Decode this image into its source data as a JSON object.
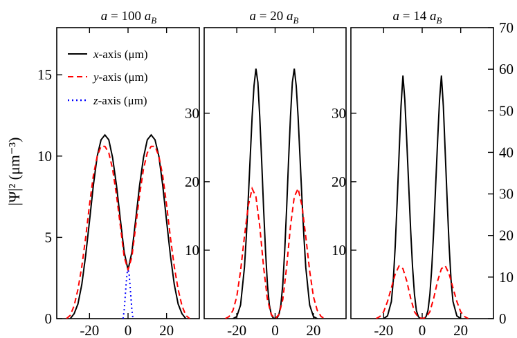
{
  "chart_data": [
    {
      "type": "line",
      "title_prefix": "a = ",
      "title_value": "100",
      "title_unit": "a",
      "title_subscript": "B",
      "ylabel": "|Ψ|² (μm⁻³)",
      "xlim": [
        -37,
        37
      ],
      "ylim": [
        0,
        17.9
      ],
      "xticks": [
        -20,
        0,
        20
      ],
      "yticks": [
        0,
        5,
        10,
        15
      ],
      "yticks_side": "left",
      "legend": {
        "placement": "top-left",
        "entries": [
          {
            "axis_letter": "x",
            "suffix": "-axis (μm)",
            "style": "solid",
            "color": "#000000"
          },
          {
            "axis_letter": "y",
            "suffix": "-axis (μm)",
            "style": "dashed",
            "color": "#ff0000"
          },
          {
            "axis_letter": "z",
            "suffix": "-axis (μm)",
            "style": "dotted",
            "color": "#0000ff"
          }
        ]
      },
      "series": [
        {
          "name": "x-axis (μm)",
          "color": "#000000",
          "style": "solid",
          "x": [
            -30,
            -28,
            -26,
            -24,
            -22,
            -20,
            -18,
            -16,
            -14,
            -12,
            -10,
            -8,
            -6,
            -4,
            -2,
            0,
            2,
            4,
            6,
            8,
            10,
            12,
            14,
            16,
            18,
            20,
            22,
            24,
            26,
            28,
            30
          ],
          "y": [
            0.0,
            0.3,
            0.9,
            2.1,
            3.9,
            6.0,
            8.2,
            10.0,
            11.0,
            11.3,
            11.0,
            9.9,
            8.2,
            6.1,
            4.1,
            3.0,
            4.1,
            6.1,
            8.2,
            9.9,
            11.0,
            11.3,
            11.0,
            10.0,
            8.2,
            6.0,
            3.9,
            2.1,
            0.9,
            0.3,
            0.0
          ]
        },
        {
          "name": "y-axis (μm)",
          "color": "#ff0000",
          "style": "dashed",
          "x": [
            -32,
            -30,
            -28,
            -26,
            -24,
            -22,
            -20,
            -18,
            -16,
            -14,
            -12,
            -10,
            -8,
            -6,
            -4,
            -2,
            0,
            2,
            4,
            6,
            8,
            10,
            12,
            14,
            16,
            18,
            20,
            22,
            24,
            26,
            28,
            30,
            32
          ],
          "y": [
            0.0,
            0.2,
            0.8,
            1.8,
            3.2,
            5.0,
            7.0,
            8.8,
            10.0,
            10.6,
            10.6,
            10.2,
            9.2,
            7.6,
            5.7,
            3.8,
            3.0,
            3.8,
            5.7,
            7.6,
            9.2,
            10.2,
            10.6,
            10.6,
            10.0,
            8.8,
            7.0,
            5.0,
            3.2,
            1.8,
            0.8,
            0.2,
            0.0
          ]
        },
        {
          "name": "z-axis (μm)",
          "color": "#0000ff",
          "style": "dotted",
          "x": [
            -2.6,
            -2.0,
            -1.5,
            -1.0,
            -0.5,
            0,
            0.5,
            1.0,
            1.5,
            2.0,
            2.6
          ],
          "y": [
            0.0,
            0.5,
            1.3,
            2.1,
            2.8,
            3.0,
            2.8,
            2.1,
            1.3,
            0.5,
            0.0
          ]
        }
      ]
    },
    {
      "type": "line",
      "title_prefix": "a = ",
      "title_value": "20",
      "title_unit": "a",
      "title_subscript": "B",
      "xlim": [
        -37,
        37
      ],
      "ylim": [
        0,
        42.5
      ],
      "xticks": [
        -20,
        0,
        20
      ],
      "yticks": [
        10,
        20,
        30
      ],
      "yticks_side": "left",
      "series": [
        {
          "name": "x-axis (μm)",
          "color": "#000000",
          "style": "solid",
          "x": [
            -22,
            -20,
            -18,
            -16,
            -15,
            -14,
            -13,
            -12,
            -11,
            -10,
            -9,
            -8,
            -7,
            -6,
            -5,
            -4,
            -3,
            -2,
            -1,
            0,
            1,
            2,
            3,
            4,
            5,
            6,
            7,
            8,
            9,
            10,
            11,
            12,
            13,
            14,
            15,
            16,
            18,
            20,
            22
          ],
          "y": [
            0.0,
            0.3,
            2.0,
            7.5,
            12.0,
            17.5,
            23.5,
            29.5,
            34.0,
            36.5,
            34.5,
            29.5,
            23.0,
            16.0,
            10.0,
            5.0,
            2.0,
            0.6,
            0.1,
            0.0,
            0.1,
            0.6,
            2.0,
            5.0,
            10.0,
            16.0,
            23.0,
            29.5,
            34.5,
            36.5,
            34.0,
            29.5,
            23.5,
            17.5,
            12.0,
            7.5,
            2.0,
            0.3,
            0.0
          ]
        },
        {
          "name": "y-axis (μm)",
          "color": "#ff0000",
          "style": "dashed",
          "x": [
            -26,
            -24,
            -22,
            -20,
            -18,
            -16,
            -14,
            -12,
            -10,
            -8,
            -6,
            -4,
            -2,
            0,
            2,
            4,
            6,
            8,
            10,
            12,
            14,
            16,
            18,
            20,
            22,
            24,
            26
          ],
          "y": [
            0.0,
            0.3,
            1.2,
            3.2,
            7.0,
            12.0,
            16.5,
            19.0,
            17.8,
            13.5,
            7.5,
            2.8,
            0.6,
            0.0,
            0.6,
            2.8,
            7.5,
            13.5,
            17.8,
            19.0,
            16.5,
            12.0,
            7.0,
            3.2,
            1.2,
            0.3,
            0.0
          ]
        }
      ]
    },
    {
      "type": "line",
      "title_prefix": "a = ",
      "title_value": "14",
      "title_unit": "a",
      "title_subscript": "B",
      "xlim": [
        -37,
        37
      ],
      "ylim": [
        0,
        42.5
      ],
      "xticks": [
        -20,
        0,
        20
      ],
      "yticks": [
        10,
        20,
        30
      ],
      "yticks_side": "left",
      "right_axis": {
        "ylim": [
          0,
          70
        ],
        "yticks": [
          0,
          10,
          20,
          30,
          40,
          50,
          60,
          70
        ]
      },
      "series": [
        {
          "name": "x-axis (μm)",
          "color": "#000000",
          "style": "solid",
          "x": [
            -20,
            -18,
            -16,
            -15,
            -14,
            -13,
            -12,
            -11,
            -10,
            -9,
            -8,
            -7,
            -6,
            -5,
            -4,
            -3,
            -2,
            -1,
            0,
            1,
            2,
            3,
            4,
            5,
            6,
            7,
            8,
            9,
            10,
            11,
            12,
            13,
            14,
            15,
            16,
            18,
            20
          ],
          "y": [
            0.0,
            0.4,
            2.5,
            5.5,
            10.5,
            17.0,
            24.0,
            31.0,
            35.5,
            32.0,
            26.0,
            19.5,
            13.0,
            7.5,
            3.5,
            1.2,
            0.3,
            0.0,
            0.0,
            0.0,
            0.3,
            1.2,
            3.5,
            7.5,
            13.0,
            19.5,
            26.0,
            32.0,
            35.5,
            31.0,
            24.0,
            17.0,
            10.5,
            5.5,
            2.5,
            0.4,
            0.0
          ]
        },
        {
          "name": "y-axis (μm)",
          "color": "#ff0000",
          "style": "dashed",
          "x": [
            -24,
            -22,
            -20,
            -18,
            -16,
            -14,
            -12,
            -10,
            -8,
            -6,
            -4,
            -2,
            0,
            2,
            4,
            6,
            8,
            10,
            12,
            14,
            16,
            18,
            20,
            22,
            24
          ],
          "y": [
            0.0,
            0.3,
            1.0,
            2.5,
            4.5,
            6.5,
            7.7,
            7.3,
            5.5,
            3.0,
            1.0,
            0.2,
            0.0,
            0.2,
            1.0,
            3.0,
            5.5,
            7.3,
            7.7,
            6.5,
            4.5,
            2.5,
            1.0,
            0.3,
            0.0
          ]
        }
      ]
    }
  ]
}
